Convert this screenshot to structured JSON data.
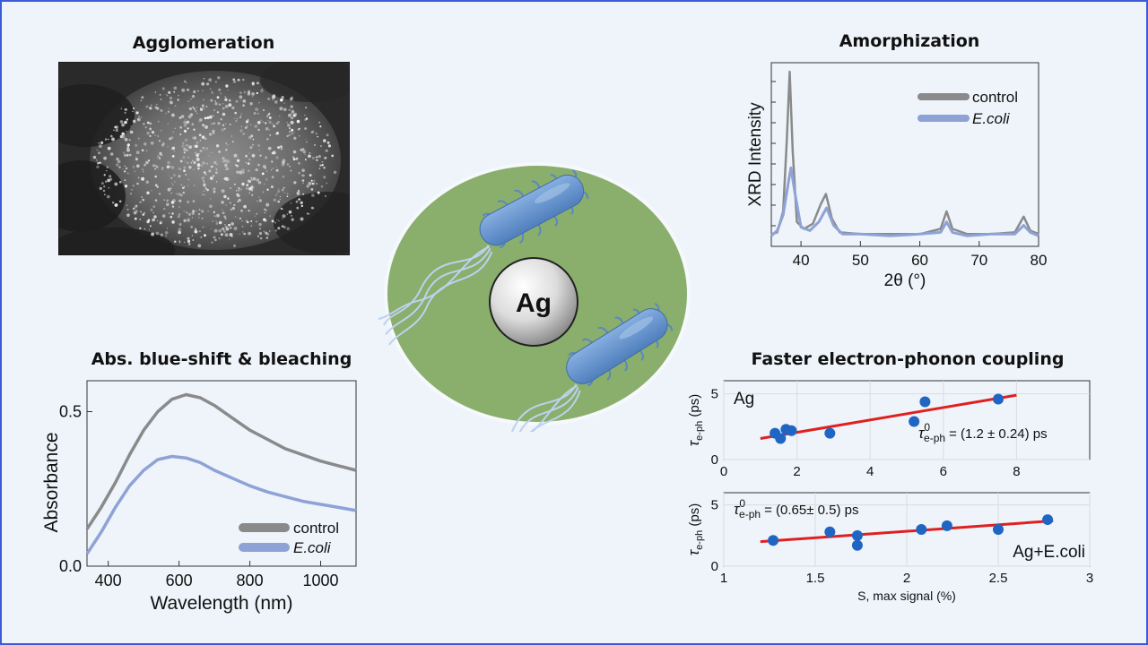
{
  "titles": {
    "agglomeration": "Agglomeration",
    "amorphization": "Amorphization",
    "absorption": "Abs. blue-shift & bleaching",
    "coupling": "Faster electron-phonon coupling"
  },
  "center": {
    "label": "Ag"
  },
  "colors": {
    "control": "#8a8a8a",
    "ecoli": "#8ea2d6",
    "fit": "#e02020",
    "points": "#1f66c4",
    "cell": "#8aae6c",
    "bacteria": "#5a88c2"
  },
  "chart_data": [
    {
      "id": "xrd",
      "type": "line",
      "xlabel": "2θ (°)",
      "ylabel": "XRD Intensity",
      "xlim": [
        35,
        80
      ],
      "xticks": [
        40,
        50,
        60,
        70,
        80
      ],
      "legend_placement": "top-right",
      "series": [
        {
          "name": "control",
          "color_key": "control",
          "points": [
            [
              35,
              0.07
            ],
            [
              36,
              0.08
            ],
            [
              37,
              0.2
            ],
            [
              37.6,
              0.6
            ],
            [
              38.1,
              1.0
            ],
            [
              38.6,
              0.55
            ],
            [
              39.3,
              0.14
            ],
            [
              40.5,
              0.1
            ],
            [
              42,
              0.13
            ],
            [
              43.3,
              0.24
            ],
            [
              44.2,
              0.3
            ],
            [
              45.2,
              0.16
            ],
            [
              46.5,
              0.08
            ],
            [
              50,
              0.07
            ],
            [
              55,
              0.07
            ],
            [
              60,
              0.07
            ],
            [
              63.5,
              0.1
            ],
            [
              64.5,
              0.2
            ],
            [
              65.5,
              0.1
            ],
            [
              68,
              0.07
            ],
            [
              72,
              0.07
            ],
            [
              76,
              0.08
            ],
            [
              77.5,
              0.17
            ],
            [
              78.6,
              0.09
            ],
            [
              80,
              0.07
            ]
          ]
        },
        {
          "name": "E.coli",
          "color_key": "ecoli",
          "points": [
            [
              35,
              0.06
            ],
            [
              36,
              0.09
            ],
            [
              37,
              0.18
            ],
            [
              37.8,
              0.35
            ],
            [
              38.3,
              0.45
            ],
            [
              39,
              0.3
            ],
            [
              40,
              0.11
            ],
            [
              41.5,
              0.09
            ],
            [
              43,
              0.14
            ],
            [
              44.3,
              0.22
            ],
            [
              45.5,
              0.12
            ],
            [
              47,
              0.07
            ],
            [
              50,
              0.07
            ],
            [
              55,
              0.06
            ],
            [
              60,
              0.07
            ],
            [
              63.5,
              0.08
            ],
            [
              64.5,
              0.14
            ],
            [
              65.5,
              0.08
            ],
            [
              68,
              0.06
            ],
            [
              72,
              0.07
            ],
            [
              76,
              0.07
            ],
            [
              77.5,
              0.12
            ],
            [
              78.6,
              0.08
            ],
            [
              80,
              0.06
            ]
          ]
        }
      ]
    },
    {
      "id": "abs",
      "type": "line",
      "xlabel": "Wavelength (nm)",
      "ylabel": "Absorbance",
      "xlim": [
        340,
        1100
      ],
      "ylim": [
        0,
        0.6
      ],
      "xticks": [
        400,
        600,
        800,
        1000
      ],
      "yticks": [
        0.0,
        0.5
      ],
      "ytick_labels": [
        "0.0",
        "0.5"
      ],
      "legend_placement": "bottom-right",
      "series": [
        {
          "name": "control",
          "color_key": "control",
          "points": [
            [
              340,
              0.12
            ],
            [
              380,
              0.19
            ],
            [
              420,
              0.27
            ],
            [
              460,
              0.36
            ],
            [
              500,
              0.44
            ],
            [
              540,
              0.5
            ],
            [
              580,
              0.54
            ],
            [
              620,
              0.555
            ],
            [
              660,
              0.545
            ],
            [
              700,
              0.52
            ],
            [
              750,
              0.48
            ],
            [
              800,
              0.44
            ],
            [
              850,
              0.41
            ],
            [
              900,
              0.38
            ],
            [
              950,
              0.36
            ],
            [
              1000,
              0.34
            ],
            [
              1050,
              0.325
            ],
            [
              1100,
              0.31
            ]
          ]
        },
        {
          "name": "E.coli",
          "color_key": "ecoli",
          "points": [
            [
              340,
              0.04
            ],
            [
              380,
              0.11
            ],
            [
              420,
              0.19
            ],
            [
              460,
              0.26
            ],
            [
              500,
              0.31
            ],
            [
              540,
              0.345
            ],
            [
              580,
              0.355
            ],
            [
              620,
              0.35
            ],
            [
              660,
              0.335
            ],
            [
              700,
              0.31
            ],
            [
              750,
              0.285
            ],
            [
              800,
              0.26
            ],
            [
              850,
              0.24
            ],
            [
              900,
              0.225
            ],
            [
              950,
              0.21
            ],
            [
              1000,
              0.2
            ],
            [
              1050,
              0.19
            ],
            [
              1100,
              0.18
            ]
          ]
        }
      ]
    },
    {
      "id": "ag",
      "type": "scatter",
      "ylabel": "τe-ph (ps)",
      "xlim": [
        0,
        10
      ],
      "ylim": [
        0,
        6
      ],
      "xticks": [
        0,
        2,
        4,
        6,
        8
      ],
      "yticks": [
        0,
        5
      ],
      "label": "Ag",
      "annotation": "= (1.2 ± 0.24) ps",
      "tau_symbol": "τ",
      "tau_sup": "0",
      "tau_sub": "e-ph",
      "points": [
        [
          1.4,
          2.0
        ],
        [
          1.55,
          1.6
        ],
        [
          1.7,
          2.3
        ],
        [
          1.85,
          2.2
        ],
        [
          2.9,
          2.0
        ],
        [
          5.2,
          2.9
        ],
        [
          5.5,
          4.4
        ],
        [
          7.5,
          4.6
        ]
      ],
      "fit": [
        [
          1.0,
          1.6
        ],
        [
          8.0,
          4.9
        ]
      ]
    },
    {
      "id": "agecoli",
      "type": "scatter",
      "xlabel": "S, max signal (%)",
      "ylabel": "τe-ph (ps)",
      "xlim": [
        1,
        3
      ],
      "ylim": [
        0,
        6
      ],
      "xticks": [
        1,
        1.5,
        2,
        2.5,
        3
      ],
      "xtick_labels": [
        "1",
        "1.5",
        "2",
        "2.5",
        "3"
      ],
      "yticks": [
        0,
        5
      ],
      "label": "Ag+E.coli",
      "annotation": "= (0.65± 0.5) ps",
      "tau_symbol": "τ",
      "tau_sup": "0",
      "tau_sub": "e-ph",
      "points": [
        [
          1.27,
          2.1
        ],
        [
          1.58,
          2.8
        ],
        [
          1.73,
          2.5
        ],
        [
          1.73,
          1.7
        ],
        [
          2.08,
          3.0
        ],
        [
          2.22,
          3.3
        ],
        [
          2.5,
          3.0
        ],
        [
          2.77,
          3.8
        ]
      ],
      "fit": [
        [
          1.2,
          2.0
        ],
        [
          2.8,
          3.7
        ]
      ]
    }
  ]
}
